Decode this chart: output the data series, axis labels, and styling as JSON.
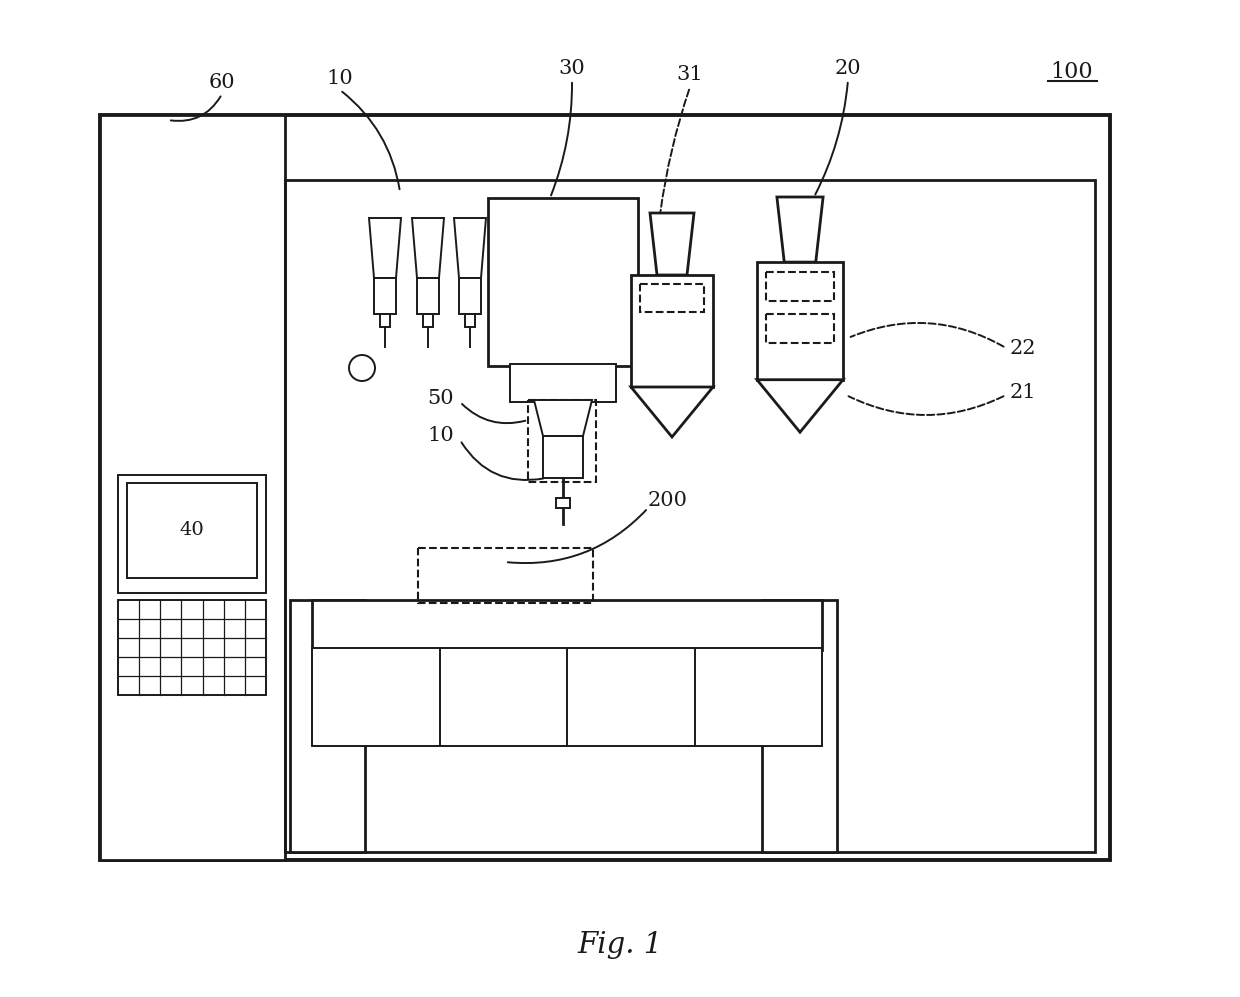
{
  "fig_width": 12.4,
  "fig_height": 9.97,
  "bg_color": "#ffffff",
  "lc": "#1a1a1a",
  "lw_outer": 2.8,
  "lw_inner": 2.0,
  "lw_thin": 1.4,
  "lw_dash": 1.5,
  "fig_label": "Fig. 1",
  "num_label": "100"
}
